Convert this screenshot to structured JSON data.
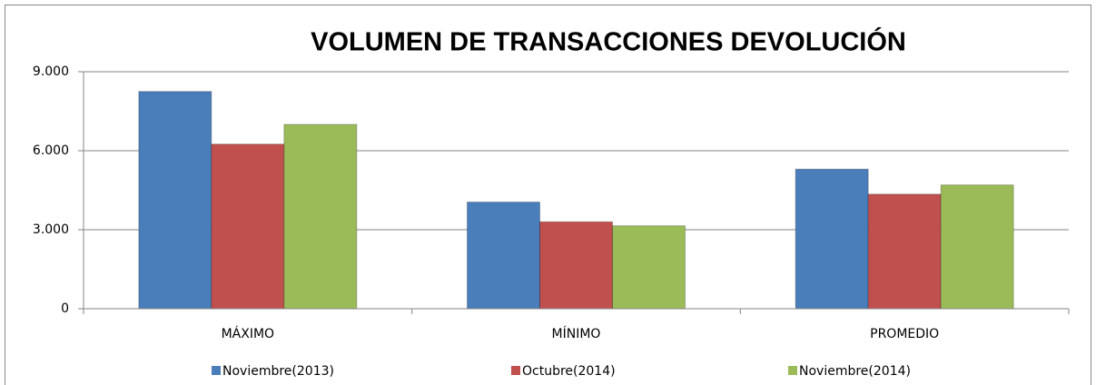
{
  "chart_data": {
    "type": "bar",
    "title": "VOLUMEN DE TRANSACCIONES DEVOLUCIÓN",
    "categories": [
      "MÁXIMO",
      "MÍNIMO",
      "PROMEDIO"
    ],
    "series": [
      {
        "name": "Noviembre(2013)",
        "color": "#4a7ebb",
        "values": [
          8250,
          4050,
          5300
        ]
      },
      {
        "name": "Octubre(2014)",
        "color": "#c0504d",
        "values": [
          6250,
          3300,
          4350
        ]
      },
      {
        "name": "Noviembre(2014)",
        "color": "#9bbb59",
        "values": [
          7000,
          3150,
          4700
        ]
      }
    ],
    "ylim": [
      0,
      9000
    ],
    "yticks": [
      0,
      {
        "value": 3000,
        "label": "3.000"
      },
      {
        "value": 6000,
        "label": "6.000"
      },
      {
        "value": 9000,
        "label": "9.000"
      }
    ],
    "grid": true,
    "legend": "bottom"
  }
}
